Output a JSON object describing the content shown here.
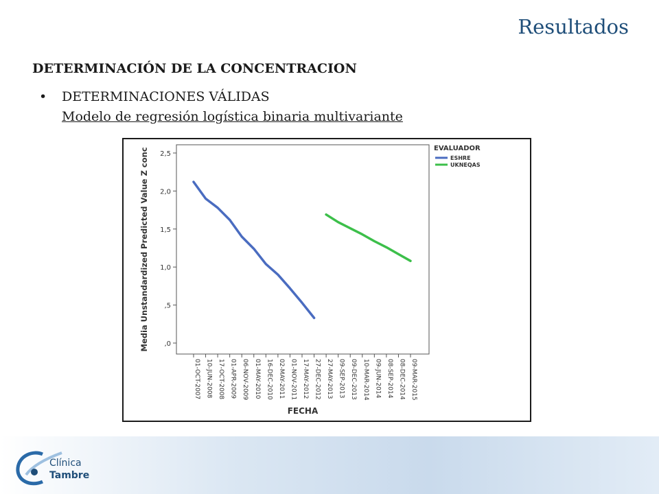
{
  "slide": {
    "title": "Resultados",
    "heading": "DETERMINACIÓN DE LA CONCENTRACION",
    "bullet": "DETERMINACIONES VÁLIDAS",
    "bullet_sub": "Modelo de regresión logística binaria multivariante"
  },
  "logo": {
    "line1": "Clínica",
    "line2": "Tambre",
    "icon": "swirl-logo-icon"
  },
  "colors": {
    "title": "#1f4e79",
    "eshre": "#4a6cc0",
    "ukneqas": "#3cbf4a"
  },
  "chart_data": {
    "type": "line",
    "xlabel": "FECHA",
    "ylabel": "Media Unstandardized Predicted Value Z conc",
    "ylim": [
      0,
      2.5
    ],
    "yticks": [
      {
        "v": 0,
        "label": ",0"
      },
      {
        "v": 0.5,
        "label": ",5"
      },
      {
        "v": 1.0,
        "label": "1,0"
      },
      {
        "v": 1.5,
        "label": "1,5"
      },
      {
        "v": 2.0,
        "label": "2,0"
      },
      {
        "v": 2.5,
        "label": "2,5"
      }
    ],
    "categories": [
      "01-OCT-2007",
      "10-JUN-2008",
      "17-OCT-2008",
      "01-APR-2009",
      "06-NOV-2009",
      "01-MAY-2010",
      "16-DEC-2010",
      "02-MAY-2011",
      "01-NOV-2011",
      "17-MAY-2012",
      "27-DEC-2012",
      "27-MAY-2013",
      "09-SEP-2013",
      "09-DEC-2013",
      "10-MAR-2014",
      "09-JUN-2014",
      "08-SEP-2014",
      "08-DEC-2014",
      "09-MAR-2015"
    ],
    "legend": {
      "title": "EVALUADOR",
      "placement": "top-right"
    },
    "grid": false,
    "series": [
      {
        "name": "ESHRE",
        "color": "#4a6cc0",
        "values": [
          2.12,
          1.9,
          1.78,
          1.62,
          1.4,
          1.24,
          1.04,
          0.9,
          0.72,
          0.53,
          0.33,
          null,
          null,
          null,
          null,
          null,
          null,
          null,
          null
        ]
      },
      {
        "name": "UKNEQAS",
        "color": "#3cbf4a",
        "values": [
          null,
          null,
          null,
          null,
          null,
          null,
          null,
          null,
          null,
          null,
          null,
          1.69,
          1.59,
          1.51,
          1.43,
          1.34,
          1.26,
          1.17,
          1.08
        ]
      }
    ]
  }
}
